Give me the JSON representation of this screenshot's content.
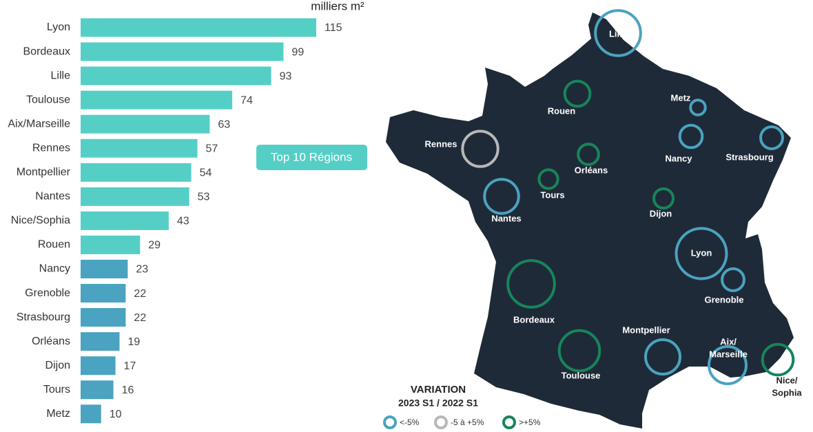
{
  "chart_data": {
    "type": "bar",
    "unit": "milliers m²",
    "badge": "Top 10 Régions",
    "categories": [
      "Lyon",
      "Bordeaux",
      "Lille",
      "Toulouse",
      "Aix/Marseille",
      "Rennes",
      "Montpellier",
      "Nantes",
      "Nice/Sophia",
      "Rouen",
      "Nancy",
      "Grenoble",
      "Strasbourg",
      "Orléans",
      "Dijon",
      "Tours",
      "Metz"
    ],
    "values": [
      115,
      99,
      93,
      74,
      63,
      57,
      54,
      53,
      43,
      29,
      23,
      22,
      22,
      19,
      17,
      16,
      10
    ],
    "colors": [
      "#55cfc6",
      "#55cfc6",
      "#55cfc6",
      "#55cfc6",
      "#55cfc6",
      "#55cfc6",
      "#55cfc6",
      "#55cfc6",
      "#55cfc6",
      "#55cfc6",
      "#4aa3c0",
      "#4aa3c0",
      "#4aa3c0",
      "#4aa3c0",
      "#4aa3c0",
      "#4aa3c0",
      "#4aa3c0"
    ]
  },
  "map": {
    "legend_title": "VARIATION",
    "legend_subtitle": "2023 S1 / 2022 S1",
    "legend": [
      {
        "label": "<-5%",
        "color": "#4aa3c0"
      },
      {
        "label": "-5 à +5%",
        "color": "#b8b8b8"
      },
      {
        "label": ">+5%",
        "color": "#17855a"
      }
    ],
    "city_labels": [
      [
        "Lyon"
      ],
      [
        "Bordeaux"
      ],
      [
        "Lille"
      ],
      [
        "Toulouse"
      ],
      [
        "Aix/",
        "Marseille"
      ],
      [
        "Rennes"
      ],
      [
        "Montpellier"
      ],
      [
        "Nantes"
      ],
      [
        "Nice/",
        "Sophia"
      ],
      [
        "Rouen"
      ],
      [
        "Nancy"
      ],
      [
        "Grenoble"
      ],
      [
        "Strasbourg"
      ],
      [
        "Orléans"
      ],
      [
        "Dijon"
      ],
      [
        "Tours"
      ],
      [
        "Metz"
      ]
    ],
    "circle_colors": [
      "#4aa3c0",
      "#17855a",
      "#4aa3c0",
      "#17855a",
      "#4aa3c0",
      "#b8b8b8",
      "#4aa3c0",
      "#4aa3c0",
      "#17855a",
      "#17855a",
      "#4aa3c0",
      "#4aa3c0",
      "#4aa3c0",
      "#17855a",
      "#17855a",
      "#17855a",
      "#4aa3c0"
    ]
  }
}
